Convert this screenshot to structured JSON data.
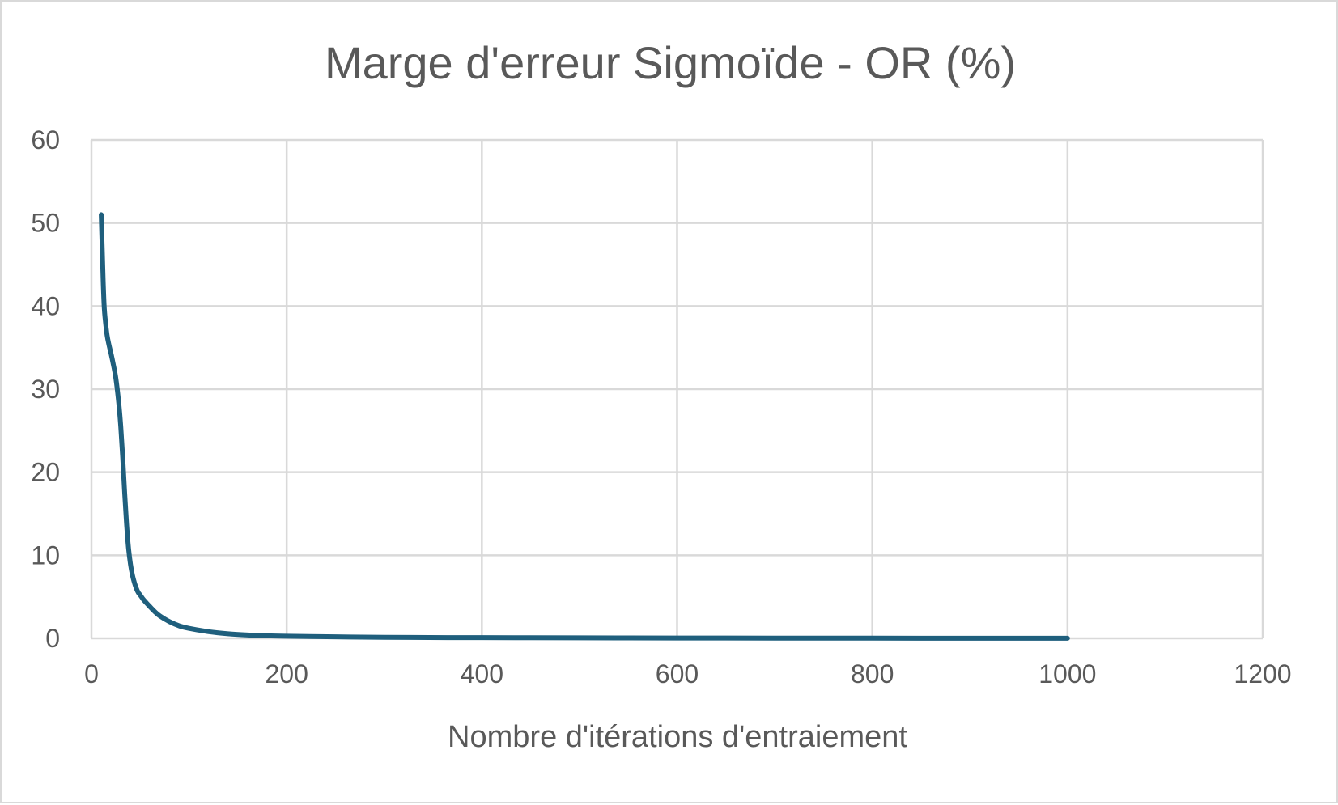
{
  "chart_data": {
    "type": "line",
    "title": "Marge d'erreur Sigmoïde - OR (%)",
    "xlabel": "Nombre d'itérations d'entraiement",
    "ylabel": "",
    "xlim": [
      0,
      1200
    ],
    "ylim": [
      0,
      60
    ],
    "xticks": [
      "0",
      "200",
      "400",
      "600",
      "800",
      "1000",
      "1200"
    ],
    "yticks": [
      "0",
      "10",
      "20",
      "30",
      "40",
      "50",
      "60"
    ],
    "grid": true,
    "legend": "none",
    "series": [
      {
        "color": "#1f5f7d",
        "x": [
          10,
          11,
          12,
          13,
          14,
          16,
          18,
          20,
          22,
          25,
          28,
          30,
          32,
          34,
          36,
          38,
          40,
          42,
          44,
          46,
          48,
          50,
          53,
          56,
          60,
          65,
          70,
          80,
          90,
          100,
          120,
          140,
          160,
          180,
          200,
          250,
          300,
          400,
          500,
          600,
          700,
          800,
          900,
          1000
        ],
        "y": [
          51,
          47,
          43,
          40,
          38.5,
          36.5,
          35.3,
          34.3,
          33.2,
          31.3,
          28.3,
          25.5,
          21.8,
          17.5,
          13.7,
          10.8,
          8.9,
          7.6,
          6.7,
          6.0,
          5.5,
          5.2,
          4.7,
          4.3,
          3.8,
          3.2,
          2.7,
          2.0,
          1.5,
          1.2,
          0.8,
          0.55,
          0.4,
          0.3,
          0.25,
          0.18,
          0.12,
          0.08,
          0.06,
          0.04,
          0.03,
          0.02,
          0.015,
          0.01
        ]
      }
    ]
  }
}
